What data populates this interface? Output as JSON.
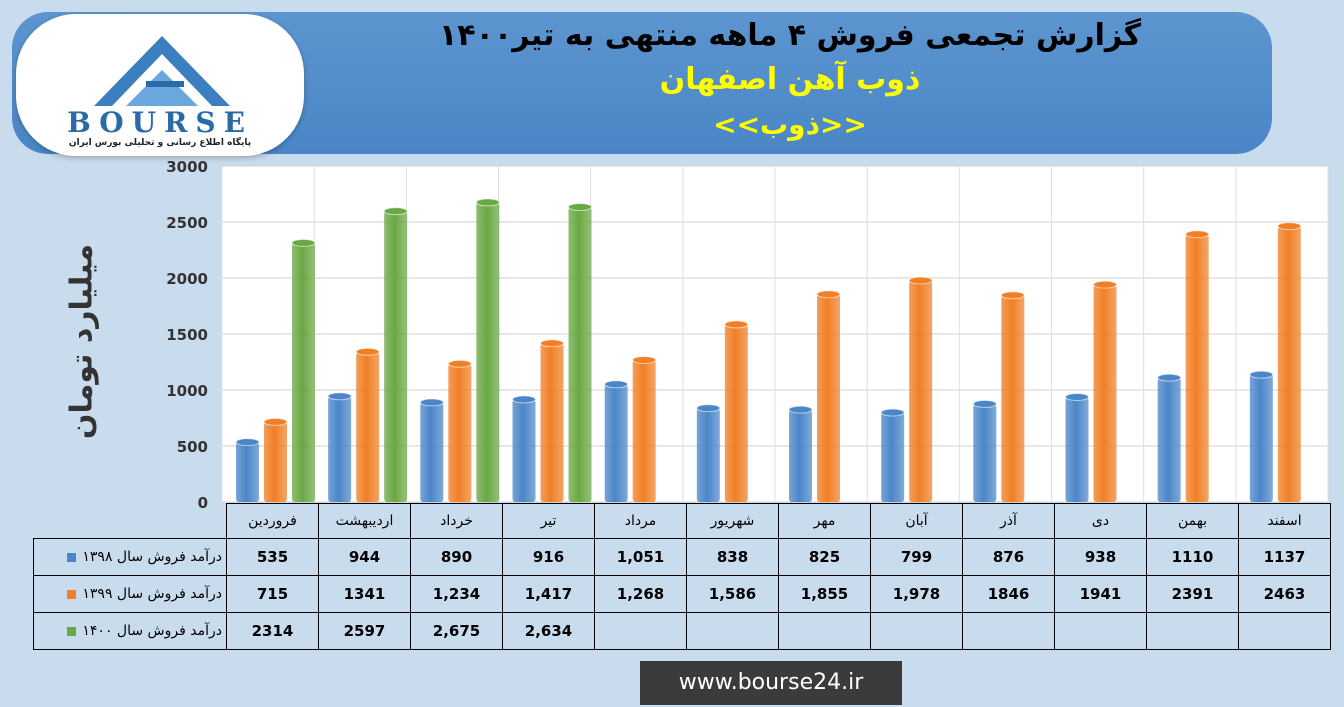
{
  "header": {
    "title": "گزارش تجمعی فروش ۴ ماهه منتهی به تیر۱۴۰۰",
    "company": "ذوب آهن اصفهان",
    "symbol": "<<ذوب>>"
  },
  "logo": {
    "word": "BOURSE",
    "tagline": "پایگاه اطلاع رسانی و تحلیلی بورس ایران"
  },
  "footer": {
    "site": "www.bourse24.ir"
  },
  "colors": {
    "series_1398": "#4a86c8",
    "series_1399": "#f07f26",
    "series_1400": "#6aa843"
  },
  "chart_data": {
    "type": "bar",
    "ylabel": "میلیارد تومان",
    "ylim": [
      0,
      3000
    ],
    "yticks": [
      "0",
      "500",
      "1000",
      "1500",
      "2000",
      "2500",
      "3000"
    ],
    "categories": [
      "فروردین",
      "اردیبهشت",
      "خرداد",
      "تیر",
      "مرداد",
      "شهریور",
      "مهر",
      "آبان",
      "آذر",
      "دی",
      "بهمن",
      "اسفند"
    ],
    "series": [
      {
        "name": "درآمد فروش سال ۱۳۹۸",
        "values": [
          535,
          944,
          890,
          916,
          1051,
          838,
          825,
          799,
          876,
          938,
          1110,
          1137
        ],
        "labels": [
          "535",
          "944",
          "890",
          "916",
          "1,051",
          "838",
          "825",
          "799",
          "876",
          "938",
          "1110",
          "1137"
        ]
      },
      {
        "name": "درآمد فروش سال ۱۳۹۹",
        "values": [
          715,
          1341,
          1234,
          1417,
          1268,
          1586,
          1855,
          1978,
          1846,
          1941,
          2391,
          2463
        ],
        "labels": [
          "715",
          "1341",
          "1,234",
          "1,417",
          "1,268",
          "1,586",
          "1,855",
          "1,978",
          "1846",
          "1941",
          "2391",
          "2463"
        ]
      },
      {
        "name": "درآمد فروش سال ۱۴۰۰",
        "values": [
          2314,
          2597,
          2675,
          2634,
          null,
          null,
          null,
          null,
          null,
          null,
          null,
          null
        ],
        "labels": [
          "2314",
          "2597",
          "2,675",
          "2,634",
          "",
          "",
          "",
          "",
          "",
          "",
          "",
          ""
        ]
      }
    ],
    "grid": true,
    "legend": "table-left"
  }
}
